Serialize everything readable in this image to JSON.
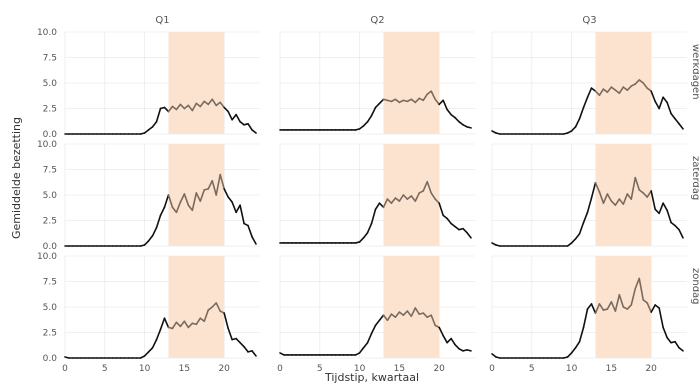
{
  "chart_data": {
    "type": "line",
    "xlabel": "Tijdstip, kwartaal",
    "ylabel": "Gemiddelde bezetting",
    "xlim": [
      0,
      24.5
    ],
    "ylim": [
      0,
      10
    ],
    "x_ticks": [
      0,
      5,
      10,
      15,
      20
    ],
    "y_ticks": [
      0,
      2.5,
      5,
      7.5,
      10
    ],
    "y_tick_labels": [
      "0.0",
      "2.5",
      "5.0",
      "7.5",
      "10.0"
    ],
    "columns": [
      "Q1",
      "Q2",
      "Q3"
    ],
    "rows": [
      "werkdagen",
      "zaterdag",
      "zondag"
    ],
    "highlight": {
      "x_start": 13,
      "x_end": 20,
      "color": "#fbe3d0"
    },
    "colors": {
      "line": "#111111",
      "line_in_band": "#7a6a5e",
      "grid": "#ebebeb"
    },
    "grid": true,
    "x": [
      0,
      0.5,
      1,
      1.5,
      2,
      2.5,
      3,
      3.5,
      4,
      4.5,
      5,
      5.5,
      6,
      6.5,
      7,
      7.5,
      8,
      8.5,
      9,
      9.5,
      10,
      10.5,
      11,
      11.5,
      12,
      12.5,
      13,
      13.5,
      14,
      14.5,
      15,
      15.5,
      16,
      16.5,
      17,
      17.5,
      18,
      18.5,
      19,
      19.5,
      20,
      20.5,
      21,
      21.5,
      22,
      22.5,
      23,
      23.5,
      24
    ],
    "panels": [
      {
        "column": "Q1",
        "row": "werkdagen",
        "values": [
          0,
          0,
          0,
          0,
          0,
          0,
          0,
          0,
          0,
          0,
          0,
          0,
          0,
          0,
          0,
          0,
          0,
          0,
          0,
          0,
          0.1,
          0.4,
          0.7,
          1.2,
          2.5,
          2.6,
          2.2,
          2.7,
          2.4,
          2.9,
          2.5,
          2.8,
          2.3,
          3.0,
          2.7,
          3.2,
          2.9,
          3.4,
          2.8,
          3.1,
          2.6,
          2.2,
          1.4,
          1.9,
          1.2,
          0.9,
          1.0,
          0.4,
          0.1
        ]
      },
      {
        "column": "Q2",
        "row": "werkdagen",
        "values": [
          0.4,
          0.4,
          0.4,
          0.4,
          0.4,
          0.4,
          0.4,
          0.4,
          0.4,
          0.4,
          0.4,
          0.4,
          0.4,
          0.4,
          0.4,
          0.4,
          0.4,
          0.4,
          0.4,
          0.4,
          0.5,
          0.8,
          1.2,
          1.8,
          2.6,
          3.0,
          3.4,
          3.3,
          3.2,
          3.4,
          3.1,
          3.3,
          3.2,
          3.4,
          3.1,
          3.5,
          3.3,
          3.9,
          4.2,
          3.4,
          2.9,
          3.3,
          2.4,
          1.9,
          1.6,
          1.2,
          0.9,
          0.7,
          0.6
        ]
      },
      {
        "column": "Q3",
        "row": "werkdagen",
        "values": [
          0.3,
          0.1,
          0,
          0,
          0,
          0,
          0,
          0,
          0,
          0,
          0,
          0,
          0,
          0,
          0,
          0,
          0,
          0,
          0,
          0.1,
          0.3,
          0.7,
          1.5,
          2.6,
          3.6,
          4.5,
          4.2,
          3.8,
          4.4,
          4.1,
          4.6,
          4.3,
          4.0,
          4.6,
          4.3,
          4.7,
          4.9,
          5.3,
          5.0,
          4.5,
          4.2,
          3.2,
          2.5,
          3.6,
          3.1,
          2.0,
          1.5,
          1.0,
          0.5
        ]
      },
      {
        "column": "Q1",
        "row": "zaterdag",
        "values": [
          0,
          0,
          0,
          0,
          0,
          0,
          0,
          0,
          0,
          0,
          0,
          0,
          0,
          0,
          0,
          0,
          0,
          0,
          0,
          0,
          0.1,
          0.5,
          1.0,
          1.8,
          3.0,
          3.8,
          5.0,
          3.8,
          3.3,
          4.3,
          5.1,
          4.0,
          3.5,
          5.2,
          4.4,
          5.5,
          5.6,
          6.4,
          5.0,
          7.0,
          5.6,
          4.8,
          4.3,
          3.3,
          4.0,
          2.2,
          2.0,
          0.9,
          0.2
        ]
      },
      {
        "column": "Q2",
        "row": "zaterdag",
        "values": [
          0.3,
          0.3,
          0.3,
          0.3,
          0.3,
          0.3,
          0.3,
          0.3,
          0.3,
          0.3,
          0.3,
          0.3,
          0.3,
          0.3,
          0.3,
          0.3,
          0.3,
          0.3,
          0.3,
          0.3,
          0.4,
          0.8,
          1.3,
          2.2,
          3.6,
          4.2,
          3.8,
          4.6,
          4.2,
          4.7,
          4.4,
          5.0,
          4.6,
          4.9,
          4.4,
          5.2,
          5.4,
          6.3,
          5.2,
          4.6,
          4.2,
          3.0,
          2.7,
          2.2,
          1.9,
          1.6,
          1.7,
          1.3,
          0.8
        ]
      },
      {
        "column": "Q3",
        "row": "zaterdag",
        "values": [
          0.3,
          0.1,
          0,
          0,
          0,
          0,
          0,
          0,
          0,
          0,
          0,
          0,
          0,
          0,
          0,
          0,
          0,
          0,
          0,
          0,
          0.3,
          0.7,
          1.2,
          2.3,
          3.3,
          4.7,
          6.2,
          5.3,
          4.2,
          5.1,
          4.4,
          4.0,
          4.6,
          4.1,
          5.1,
          4.6,
          6.7,
          5.5,
          5.2,
          4.8,
          5.4,
          3.6,
          3.2,
          4.2,
          3.5,
          2.3,
          2.0,
          1.6,
          0.8
        ]
      },
      {
        "column": "Q1",
        "row": "zondag",
        "values": [
          0.1,
          0,
          0,
          0,
          0,
          0,
          0,
          0,
          0,
          0,
          0,
          0,
          0,
          0,
          0,
          0,
          0,
          0,
          0,
          0,
          0.2,
          0.6,
          1.0,
          1.8,
          2.8,
          3.9,
          3.0,
          2.9,
          3.5,
          3.1,
          3.6,
          3.0,
          3.4,
          3.3,
          3.9,
          3.6,
          4.7,
          5.0,
          5.4,
          4.6,
          4.4,
          2.9,
          1.8,
          1.9,
          1.5,
          1.1,
          0.6,
          0.7,
          0.2
        ]
      },
      {
        "column": "Q2",
        "row": "zondag",
        "values": [
          0.5,
          0.3,
          0.3,
          0.3,
          0.3,
          0.3,
          0.3,
          0.3,
          0.3,
          0.3,
          0.3,
          0.3,
          0.3,
          0.3,
          0.3,
          0.3,
          0.3,
          0.3,
          0.3,
          0.3,
          0.5,
          1.0,
          1.5,
          2.4,
          3.2,
          3.7,
          4.2,
          3.7,
          4.3,
          4.0,
          4.5,
          4.2,
          4.6,
          4.1,
          4.9,
          4.3,
          4.4,
          4.0,
          4.2,
          3.2,
          3.0,
          2.2,
          1.5,
          1.9,
          1.3,
          0.9,
          0.7,
          0.8,
          0.7
        ]
      },
      {
        "column": "Q3",
        "row": "zondag",
        "values": [
          0.4,
          0.1,
          0,
          0,
          0,
          0,
          0,
          0,
          0,
          0,
          0,
          0,
          0,
          0,
          0,
          0,
          0,
          0,
          0,
          0.1,
          0.5,
          1.0,
          1.6,
          3.0,
          4.8,
          5.3,
          4.4,
          5.3,
          4.7,
          4.8,
          5.5,
          4.6,
          6.2,
          5.0,
          4.8,
          5.2,
          6.8,
          7.8,
          5.7,
          5.4,
          4.5,
          5.2,
          4.9,
          3.0,
          2.0,
          1.5,
          1.6,
          1.0,
          0.7
        ]
      }
    ]
  }
}
